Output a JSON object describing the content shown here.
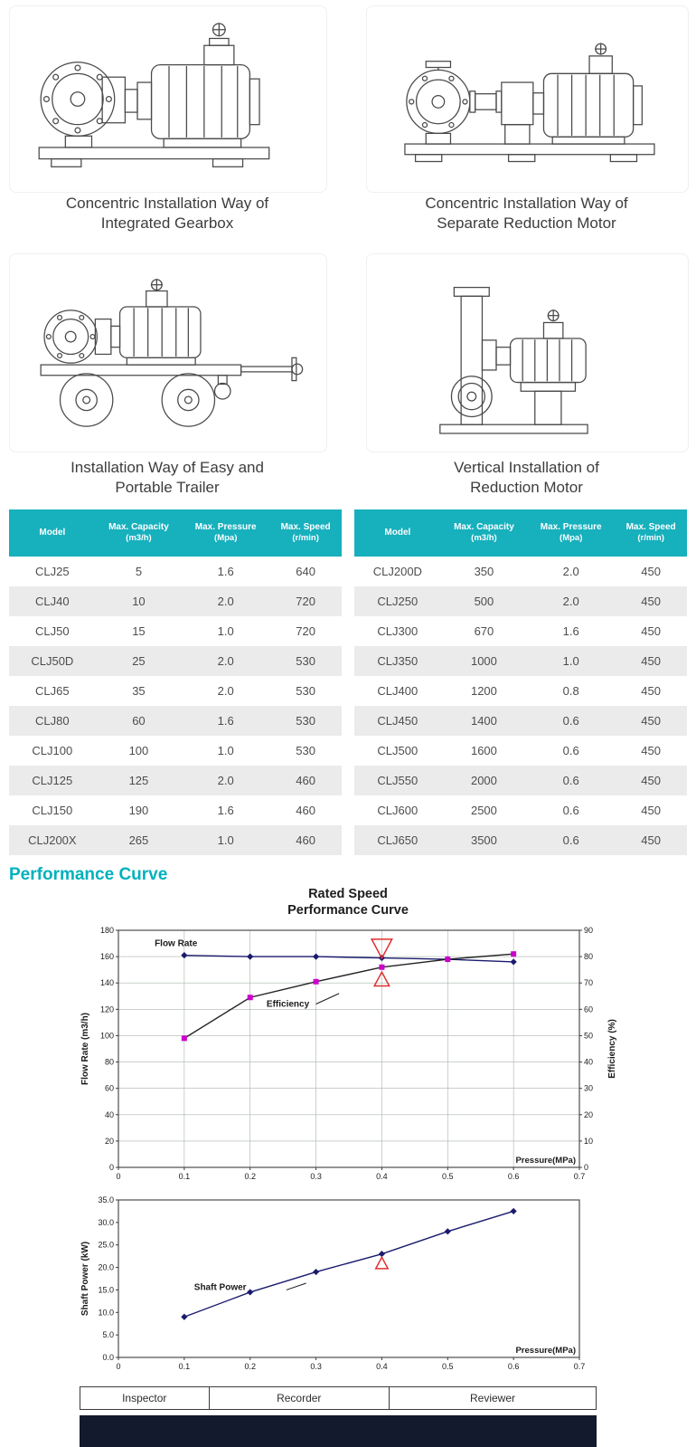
{
  "colors": {
    "accent_teal": "#17b0bd",
    "heading_teal": "#00b1bc",
    "table_alt_row": "#ebebeb",
    "chart_line_navy": "#1a1a6e",
    "marker_magenta": "#cc00cc",
    "annotation_red": "#e03030",
    "grid_color": "#a9b4aa",
    "bottom_bar": "#131a2e"
  },
  "drawings": [
    {
      "caption_line1": "Concentric Installation Way of",
      "caption_line2": "Integrated Gearbox"
    },
    {
      "caption_line1": "Concentric Installation Way of",
      "caption_line2": "Separate Reduction Motor"
    },
    {
      "caption_line1": "Installation Way of Easy and",
      "caption_line2": "Portable Trailer"
    },
    {
      "caption_line1": "Vertical Installation of",
      "caption_line2": "Reduction Motor"
    }
  ],
  "tables": {
    "headers": [
      {
        "key": "model",
        "line1": "Model",
        "line2": ""
      },
      {
        "key": "capacity",
        "line1": "Max. Capacity",
        "line2": "(m3/h)"
      },
      {
        "key": "pressure",
        "line1": "Max. Pressure",
        "line2": "(Mpa)"
      },
      {
        "key": "speed",
        "line1": "Max. Speed",
        "line2": "(r/min)"
      }
    ],
    "left_rows": [
      [
        "CLJ25",
        "5",
        "1.6",
        "640"
      ],
      [
        "CLJ40",
        "10",
        "2.0",
        "720"
      ],
      [
        "CLJ50",
        "15",
        "1.0",
        "720"
      ],
      [
        "CLJ50D",
        "25",
        "2.0",
        "530"
      ],
      [
        "CLJ65",
        "35",
        "2.0",
        "530"
      ],
      [
        "CLJ80",
        "60",
        "1.6",
        "530"
      ],
      [
        "CLJ100",
        "100",
        "1.0",
        "530"
      ],
      [
        "CLJ125",
        "125",
        "2.0",
        "460"
      ],
      [
        "CLJ150",
        "190",
        "1.6",
        "460"
      ],
      [
        "CLJ200X",
        "265",
        "1.0",
        "460"
      ]
    ],
    "right_rows": [
      [
        "CLJ200D",
        "350",
        "2.0",
        "450"
      ],
      [
        "CLJ250",
        "500",
        "2.0",
        "450"
      ],
      [
        "CLJ300",
        "670",
        "1.6",
        "450"
      ],
      [
        "CLJ350",
        "1000",
        "1.0",
        "450"
      ],
      [
        "CLJ400",
        "1200",
        "0.8",
        "450"
      ],
      [
        "CLJ450",
        "1400",
        "0.6",
        "450"
      ],
      [
        "CLJ500",
        "1600",
        "0.6",
        "450"
      ],
      [
        "CLJ550",
        "2000",
        "0.6",
        "450"
      ],
      [
        "CLJ600",
        "2500",
        "0.6",
        "450"
      ],
      [
        "CLJ650",
        "3500",
        "0.6",
        "450"
      ]
    ]
  },
  "performance": {
    "section_title": "Performance Curve",
    "chart_title_line1": "Rated Speed",
    "chart_title_line2": "Performance  Curve"
  },
  "footer": {
    "labels": [
      "Inspector",
      "Recorder",
      "Reviewer"
    ]
  },
  "chart_data": [
    {
      "type": "line",
      "title": "Rated Speed Performance Curve",
      "xlabel": "Pressure(MPa)",
      "ylabel": "Flow Rate (m3/h)",
      "ylabel_right": "Efficiency (%)",
      "xlim": [
        0,
        0.7
      ],
      "xtick_labels": [
        "0",
        "0.1",
        "0.2",
        "0.3",
        "0.4",
        "0.5",
        "0.6",
        "0.7"
      ],
      "ylim": [
        0,
        180
      ],
      "ytick_labels": [
        "0",
        "20",
        "40",
        "60",
        "80",
        "100",
        "120",
        "140",
        "160",
        "180"
      ],
      "ylim_right": [
        0,
        90
      ],
      "ytick_labels_right": [
        "0",
        "10",
        "20",
        "30",
        "40",
        "50",
        "60",
        "70",
        "80",
        "90"
      ],
      "grid": true,
      "legend_position": "in-plot labels",
      "series": [
        {
          "name": "Flow Rate",
          "axis": "left",
          "marker": "diamond",
          "line_color": "#1a1a6e",
          "marker_color": "#1a1a6e",
          "x": [
            0.1,
            0.2,
            0.3,
            0.4,
            0.5,
            0.6
          ],
          "y": [
            161,
            160,
            160,
            159,
            158,
            156
          ]
        },
        {
          "name": "Efficiency",
          "axis": "left (plotted), right axis reads half-scale %",
          "marker": "square",
          "line_color": "#222222",
          "marker_color": "#cc00cc",
          "x": [
            0.1,
            0.2,
            0.3,
            0.4,
            0.5,
            0.6
          ],
          "y": [
            98,
            129,
            141,
            152,
            158,
            162
          ],
          "y_right_percent": [
            49,
            64.5,
            70.5,
            76,
            79,
            81
          ]
        }
      ],
      "labels": [
        {
          "text": "Flow Rate",
          "x": 0.055,
          "y": 168
        },
        {
          "text": "Efficiency",
          "x": 0.225,
          "y": 122
        }
      ],
      "leaders": [
        {
          "x1": 0.3,
          "y1": 124,
          "x2": 0.335,
          "y2": 132
        }
      ],
      "annotations": [
        {
          "shape": "triangle-down",
          "x": 0.4,
          "y": 166,
          "size": 15
        },
        {
          "shape": "triangle-up",
          "x": 0.4,
          "y": 143,
          "size": 11
        }
      ]
    },
    {
      "type": "line",
      "title": "",
      "xlabel": "Pressure(MPa)",
      "ylabel": "Shaft Power (kW)",
      "xlim": [
        0,
        0.7
      ],
      "xtick_labels": [
        "0",
        "0.1",
        "0.2",
        "0.3",
        "0.4",
        "0.5",
        "0.6",
        "0.7"
      ],
      "ylim": [
        0,
        35
      ],
      "ytick_labels": [
        "0.0",
        "5.0",
        "10.0",
        "15.0",
        "20.0",
        "25.0",
        "30.0",
        "35.0"
      ],
      "grid": false,
      "series": [
        {
          "name": "Shaft Power",
          "axis": "left",
          "marker": "diamond",
          "line_color": "#1a1a6e",
          "marker_color": "#1a1a6e",
          "x": [
            0.1,
            0.2,
            0.3,
            0.4,
            0.5,
            0.6
          ],
          "y": [
            9,
            14.5,
            19,
            23,
            28,
            32.5
          ]
        }
      ],
      "labels": [
        {
          "text": "Shaft Power",
          "x": 0.115,
          "y": 15
        }
      ],
      "leaders": [
        {
          "x1": 0.255,
          "y1": 15,
          "x2": 0.285,
          "y2": 16.5
        }
      ],
      "annotations": [
        {
          "shape": "triangle-up",
          "x": 0.4,
          "y": 21,
          "size": 9
        }
      ]
    }
  ]
}
